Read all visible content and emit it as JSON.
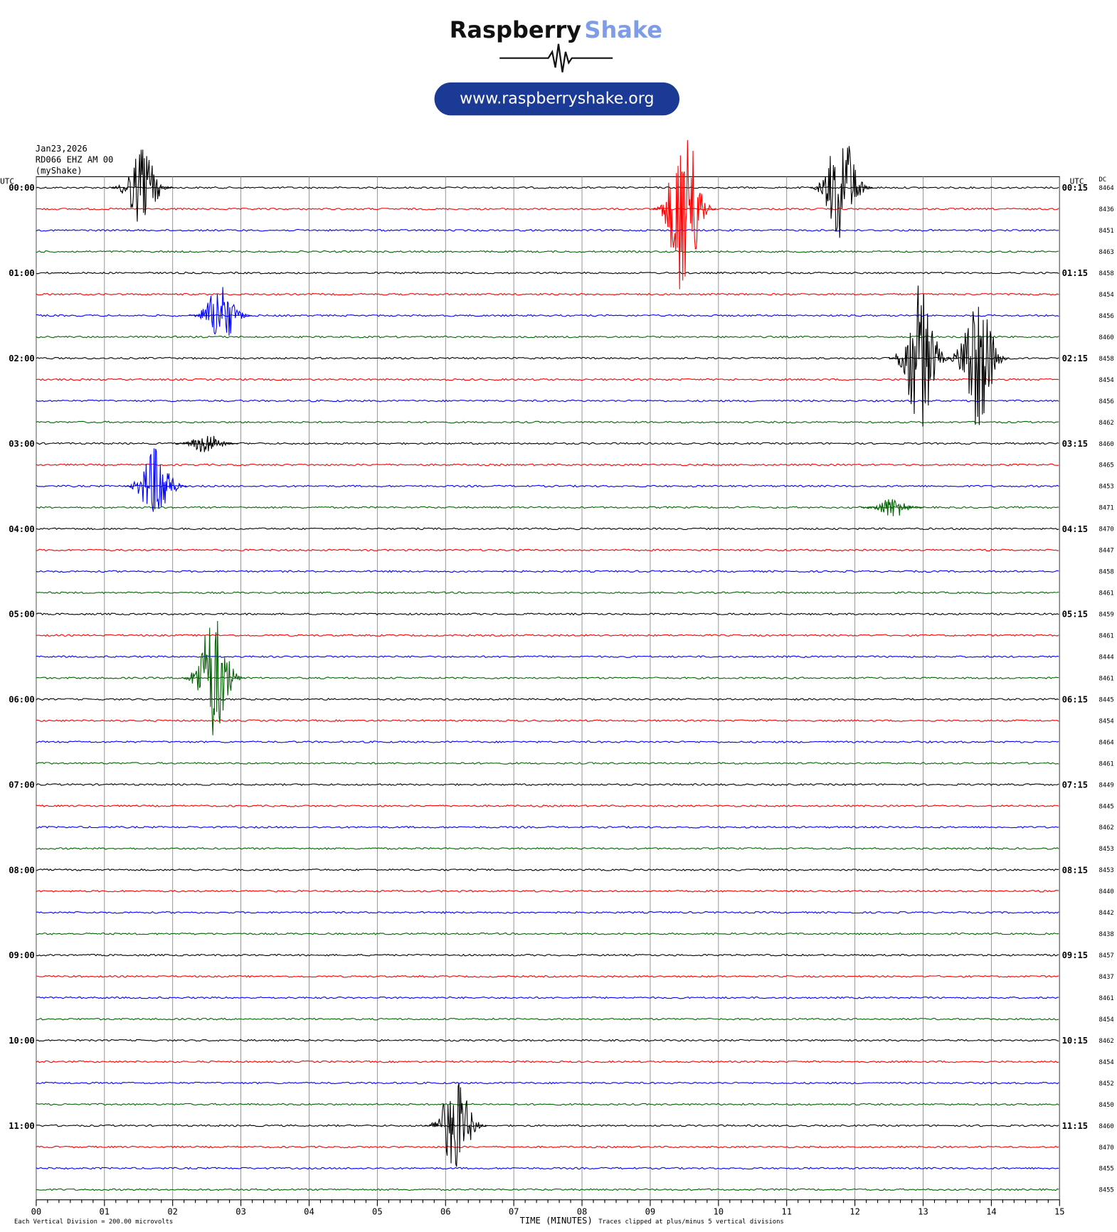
{
  "header": {
    "brand1": "Raspberry",
    "brand2": "Shake",
    "url": "www.raspberryshake.org"
  },
  "chart_data": {
    "type": "helicorder",
    "date": "Jan23,2026",
    "station": "RD066 EHZ AM 00",
    "network": "(myShake)",
    "left_axis_label": "UTC",
    "right_axis_label": "UTC",
    "dc_label": "DC",
    "x_label": "TIME (MINUTES)",
    "scale_note": "Each Vertical Division =  200.00 microvolts",
    "clip_note": "Traces clipped at plus/minus 5 vertical divisions",
    "xlim": [
      0,
      15
    ],
    "xticks": [
      {
        "value": 0,
        "label": "00"
      },
      {
        "value": 1,
        "label": "01"
      },
      {
        "value": 2,
        "label": "02"
      },
      {
        "value": 3,
        "label": "03"
      },
      {
        "value": 4,
        "label": "04"
      },
      {
        "value": 5,
        "label": "05"
      },
      {
        "value": 6,
        "label": "06"
      },
      {
        "value": 7,
        "label": "07"
      },
      {
        "value": 8,
        "label": "08"
      },
      {
        "value": 9,
        "label": "09"
      },
      10,
      11,
      12,
      13,
      14,
      15
    ],
    "colors": [
      "#000000",
      "#ff0000",
      "#0000ff",
      "#006400"
    ],
    "left_labels": [
      "00:00",
      "01:00",
      "02:00",
      "03:00",
      "04:00",
      "05:00",
      "06:00",
      "07:00",
      "08:00",
      "09:00",
      "10:00",
      "11:00"
    ],
    "right_labels": [
      "00:15",
      "01:15",
      "02:15",
      "03:15",
      "04:15",
      "05:15",
      "06:15",
      "07:15",
      "08:15",
      "09:15",
      "10:15",
      "11:15"
    ],
    "dc": [
      8464,
      8436,
      8451,
      8463,
      8458,
      8454,
      8456,
      8460,
      8458,
      8454,
      8456,
      8462,
      8460,
      8465,
      8453,
      8471,
      8470,
      8447,
      8458,
      8461,
      8459,
      8461,
      8444,
      8461,
      8445,
      8454,
      8464,
      8461,
      8449,
      8445,
      8462,
      8453,
      8453,
      8440,
      8442,
      8438,
      8457,
      8437,
      8461,
      8454,
      8462,
      8454,
      8452,
      8450,
      8460,
      8470,
      8455,
      8455
    ],
    "events": [
      {
        "row": 0,
        "minute": 1.55,
        "amplitude": 1.8
      },
      {
        "row": 1,
        "minute": 9.5,
        "amplitude": 4.4
      },
      {
        "row": 0,
        "minute": 11.8,
        "amplitude": 2.8
      },
      {
        "row": 6,
        "minute": 2.7,
        "amplitude": 1.5
      },
      {
        "row": 8,
        "minute": 12.95,
        "amplitude": 3.5
      },
      {
        "row": 8,
        "minute": 13.8,
        "amplitude": 3.4
      },
      {
        "row": 12,
        "minute": 2.5,
        "amplitude": 0.5
      },
      {
        "row": 14,
        "minute": 1.75,
        "amplitude": 1.8
      },
      {
        "row": 15,
        "minute": 12.55,
        "amplitude": 0.5
      },
      {
        "row": 23,
        "minute": 2.6,
        "amplitude": 3
      },
      {
        "row": 44,
        "minute": 6.15,
        "amplitude": 2.2
      }
    ]
  }
}
